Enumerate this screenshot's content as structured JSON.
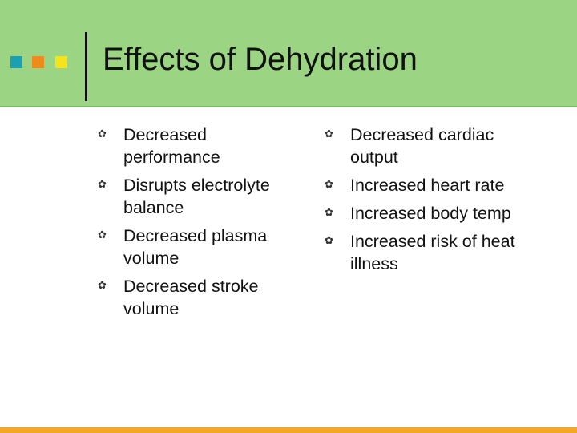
{
  "slide": {
    "title": "Effects of Dehydration",
    "bullet_glyph": "✿",
    "left_items": [
      "Decreased performance",
      "Disrupts electrolyte balance",
      "Decreased plasma volume",
      "Decreased stroke volume"
    ],
    "right_items": [
      "Decreased cardiac output",
      "Increased heart rate",
      "Increased body temp",
      "Increased risk of heat illness"
    ]
  },
  "colors": {
    "header_bg": "#9bd482",
    "square_teal": "#1aa0b4",
    "square_orange": "#f08a1c",
    "square_yellow": "#f5e31c",
    "footer_bar": "#f5a623"
  }
}
